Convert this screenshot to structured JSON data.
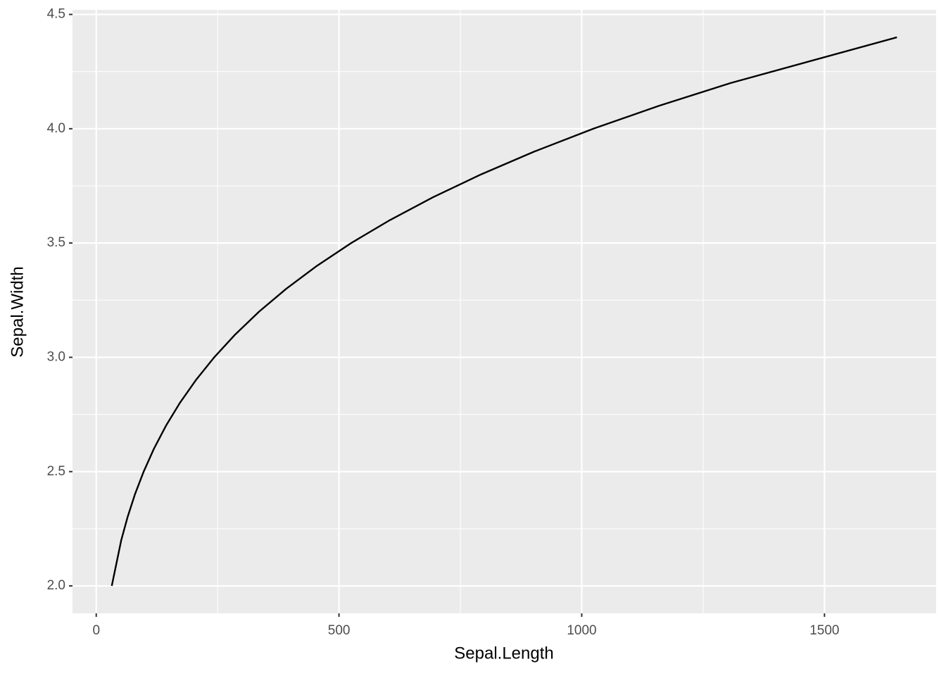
{
  "chart_data": {
    "type": "line",
    "x_label": "Sepal.Length",
    "y_label": "Sepal.Width",
    "x": [
      32,
      51.5,
      64.4,
      79.6,
      97.7,
      118.8,
      143.5,
      172.1,
      205.1,
      243,
      286.3,
      335.5,
      391.4,
      454.4,
      525.2,
      604.7,
      693.4,
      792.4,
      902.2,
      1024,
      1158.6,
      1306.9,
      1649.2
    ],
    "values": [
      2.0,
      2.2,
      2.3,
      2.4,
      2.5,
      2.6,
      2.7,
      2.8,
      2.9,
      3.0,
      3.1,
      3.2,
      3.3,
      3.4,
      3.5,
      3.6,
      3.7,
      3.8,
      3.9,
      4.0,
      4.1,
      4.2,
      4.4
    ],
    "color": "#000000",
    "xlim": [
      -48.9,
      1730
    ],
    "ylim": [
      1.88,
      4.52
    ],
    "xticks": [
      0,
      500,
      1000,
      1500
    ],
    "yticks": [
      {
        "value": 2,
        "label": "2.0"
      },
      2.5,
      {
        "value": 3,
        "label": "3.0"
      },
      3.5,
      {
        "value": 4,
        "label": "4.0"
      },
      4.5
    ],
    "x_minor_breaks": [
      250,
      750,
      1250
    ],
    "y_minor_breaks": [
      2.25,
      2.75,
      3.25,
      3.75,
      4.25
    ],
    "grid": true
  }
}
